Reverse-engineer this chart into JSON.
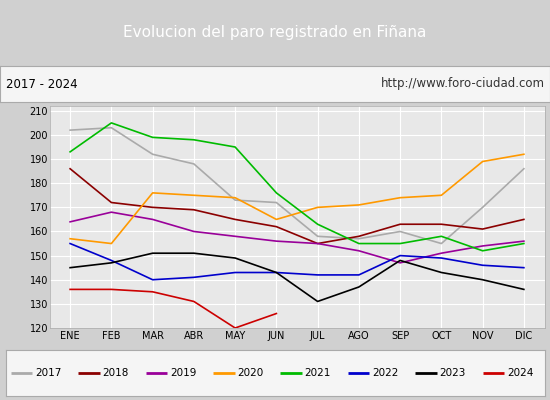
{
  "title": "Evolucion del paro registrado en Fiñana",
  "subtitle_left": "2017 - 2024",
  "subtitle_right": "http://www.foro-ciudad.com",
  "ylim": [
    120,
    212
  ],
  "yticks": [
    120,
    130,
    140,
    150,
    160,
    170,
    180,
    190,
    200,
    210
  ],
  "months": [
    "ENE",
    "FEB",
    "MAR",
    "ABR",
    "MAY",
    "JUN",
    "JUL",
    "AGO",
    "SEP",
    "OCT",
    "NOV",
    "DIC"
  ],
  "series": {
    "2017": {
      "color": "#aaaaaa",
      "data": [
        202,
        203,
        192,
        188,
        173,
        172,
        158,
        157,
        160,
        155,
        170,
        186
      ]
    },
    "2018": {
      "color": "#8b0000",
      "data": [
        186,
        172,
        170,
        169,
        165,
        162,
        155,
        158,
        163,
        163,
        161,
        165
      ]
    },
    "2019": {
      "color": "#990099",
      "data": [
        164,
        168,
        165,
        160,
        158,
        156,
        155,
        152,
        147,
        151,
        154,
        156
      ]
    },
    "2020": {
      "color": "#ff9900",
      "data": [
        157,
        155,
        176,
        175,
        174,
        165,
        170,
        171,
        174,
        175,
        189,
        192
      ]
    },
    "2021": {
      "color": "#00bb00",
      "data": [
        193,
        205,
        199,
        198,
        195,
        176,
        163,
        155,
        155,
        158,
        152,
        155
      ]
    },
    "2022": {
      "color": "#0000cc",
      "data": [
        155,
        148,
        140,
        141,
        143,
        143,
        142,
        142,
        150,
        149,
        146,
        145
      ]
    },
    "2023": {
      "color": "#000000",
      "data": [
        145,
        147,
        151,
        151,
        149,
        143,
        131,
        137,
        148,
        143,
        140,
        136
      ]
    },
    "2024": {
      "color": "#cc0000",
      "data": [
        136,
        136,
        135,
        131,
        120,
        126,
        null,
        null,
        null,
        null,
        null,
        null
      ]
    }
  },
  "plot_bg_color": "#e8e8e8",
  "title_bg_color": "#4472c4",
  "title_text_color": "#ffffff",
  "sub_bg_color": "#f5f5f5",
  "grid_color": "#ffffff",
  "legend_years": [
    "2017",
    "2018",
    "2019",
    "2020",
    "2021",
    "2022",
    "2023",
    "2024"
  ]
}
